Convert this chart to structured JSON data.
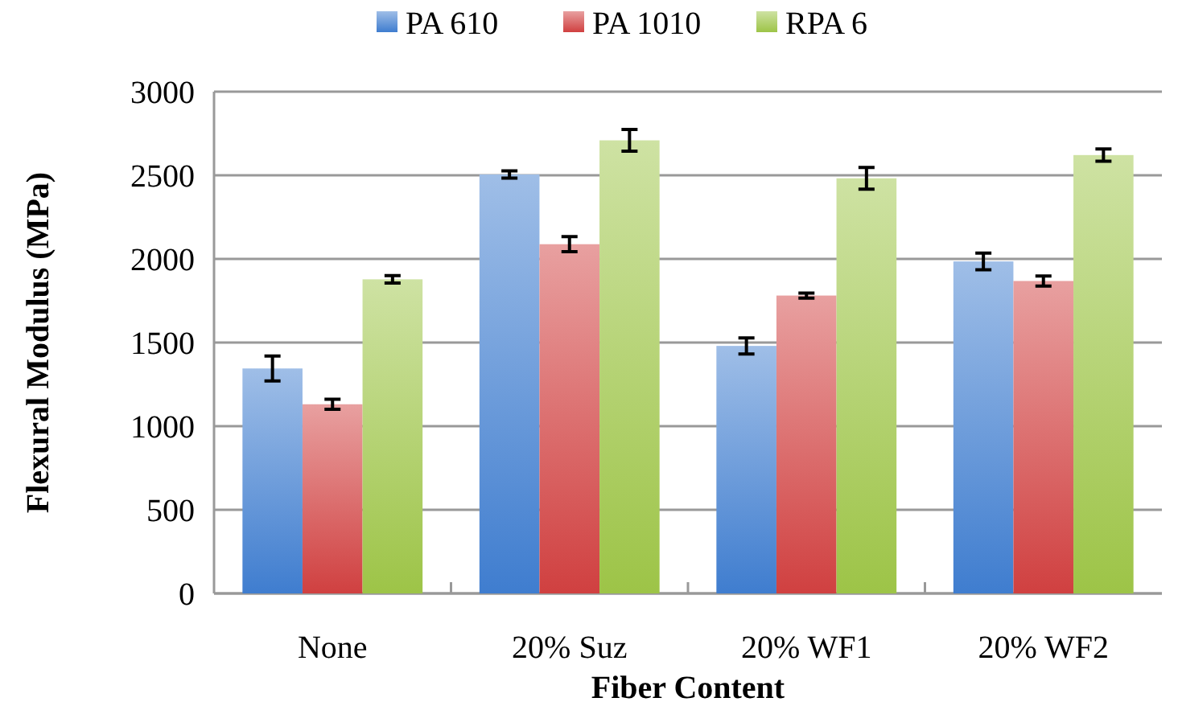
{
  "chart_data": {
    "type": "bar",
    "xlabel": "Fiber Content",
    "ylabel": "Flexural Modulus (MPa)",
    "categories": [
      "None",
      "20% Suz",
      "20% WF1",
      "20% WF2"
    ],
    "series": [
      {
        "name": "PA 610",
        "color": "#3f7dcf",
        "values": [
          1345,
          2505,
          1480,
          1985
        ],
        "errors": [
          75,
          22,
          48,
          50
        ]
      },
      {
        "name": "PA 1010",
        "color": "#d04040",
        "values": [
          1131,
          2088,
          1781,
          1868
        ],
        "errors": [
          30,
          45,
          15,
          30
        ]
      },
      {
        "name": "RPA 6",
        "color": "#9dc447",
        "values": [
          1878,
          2709,
          2482,
          2621
        ],
        "errors": [
          22,
          65,
          65,
          37
        ]
      }
    ],
    "ylim": [
      0,
      3000
    ],
    "yticks": [
      0,
      500,
      1000,
      1500,
      2000,
      2500,
      3000
    ],
    "grid": "y",
    "legend": "top"
  }
}
